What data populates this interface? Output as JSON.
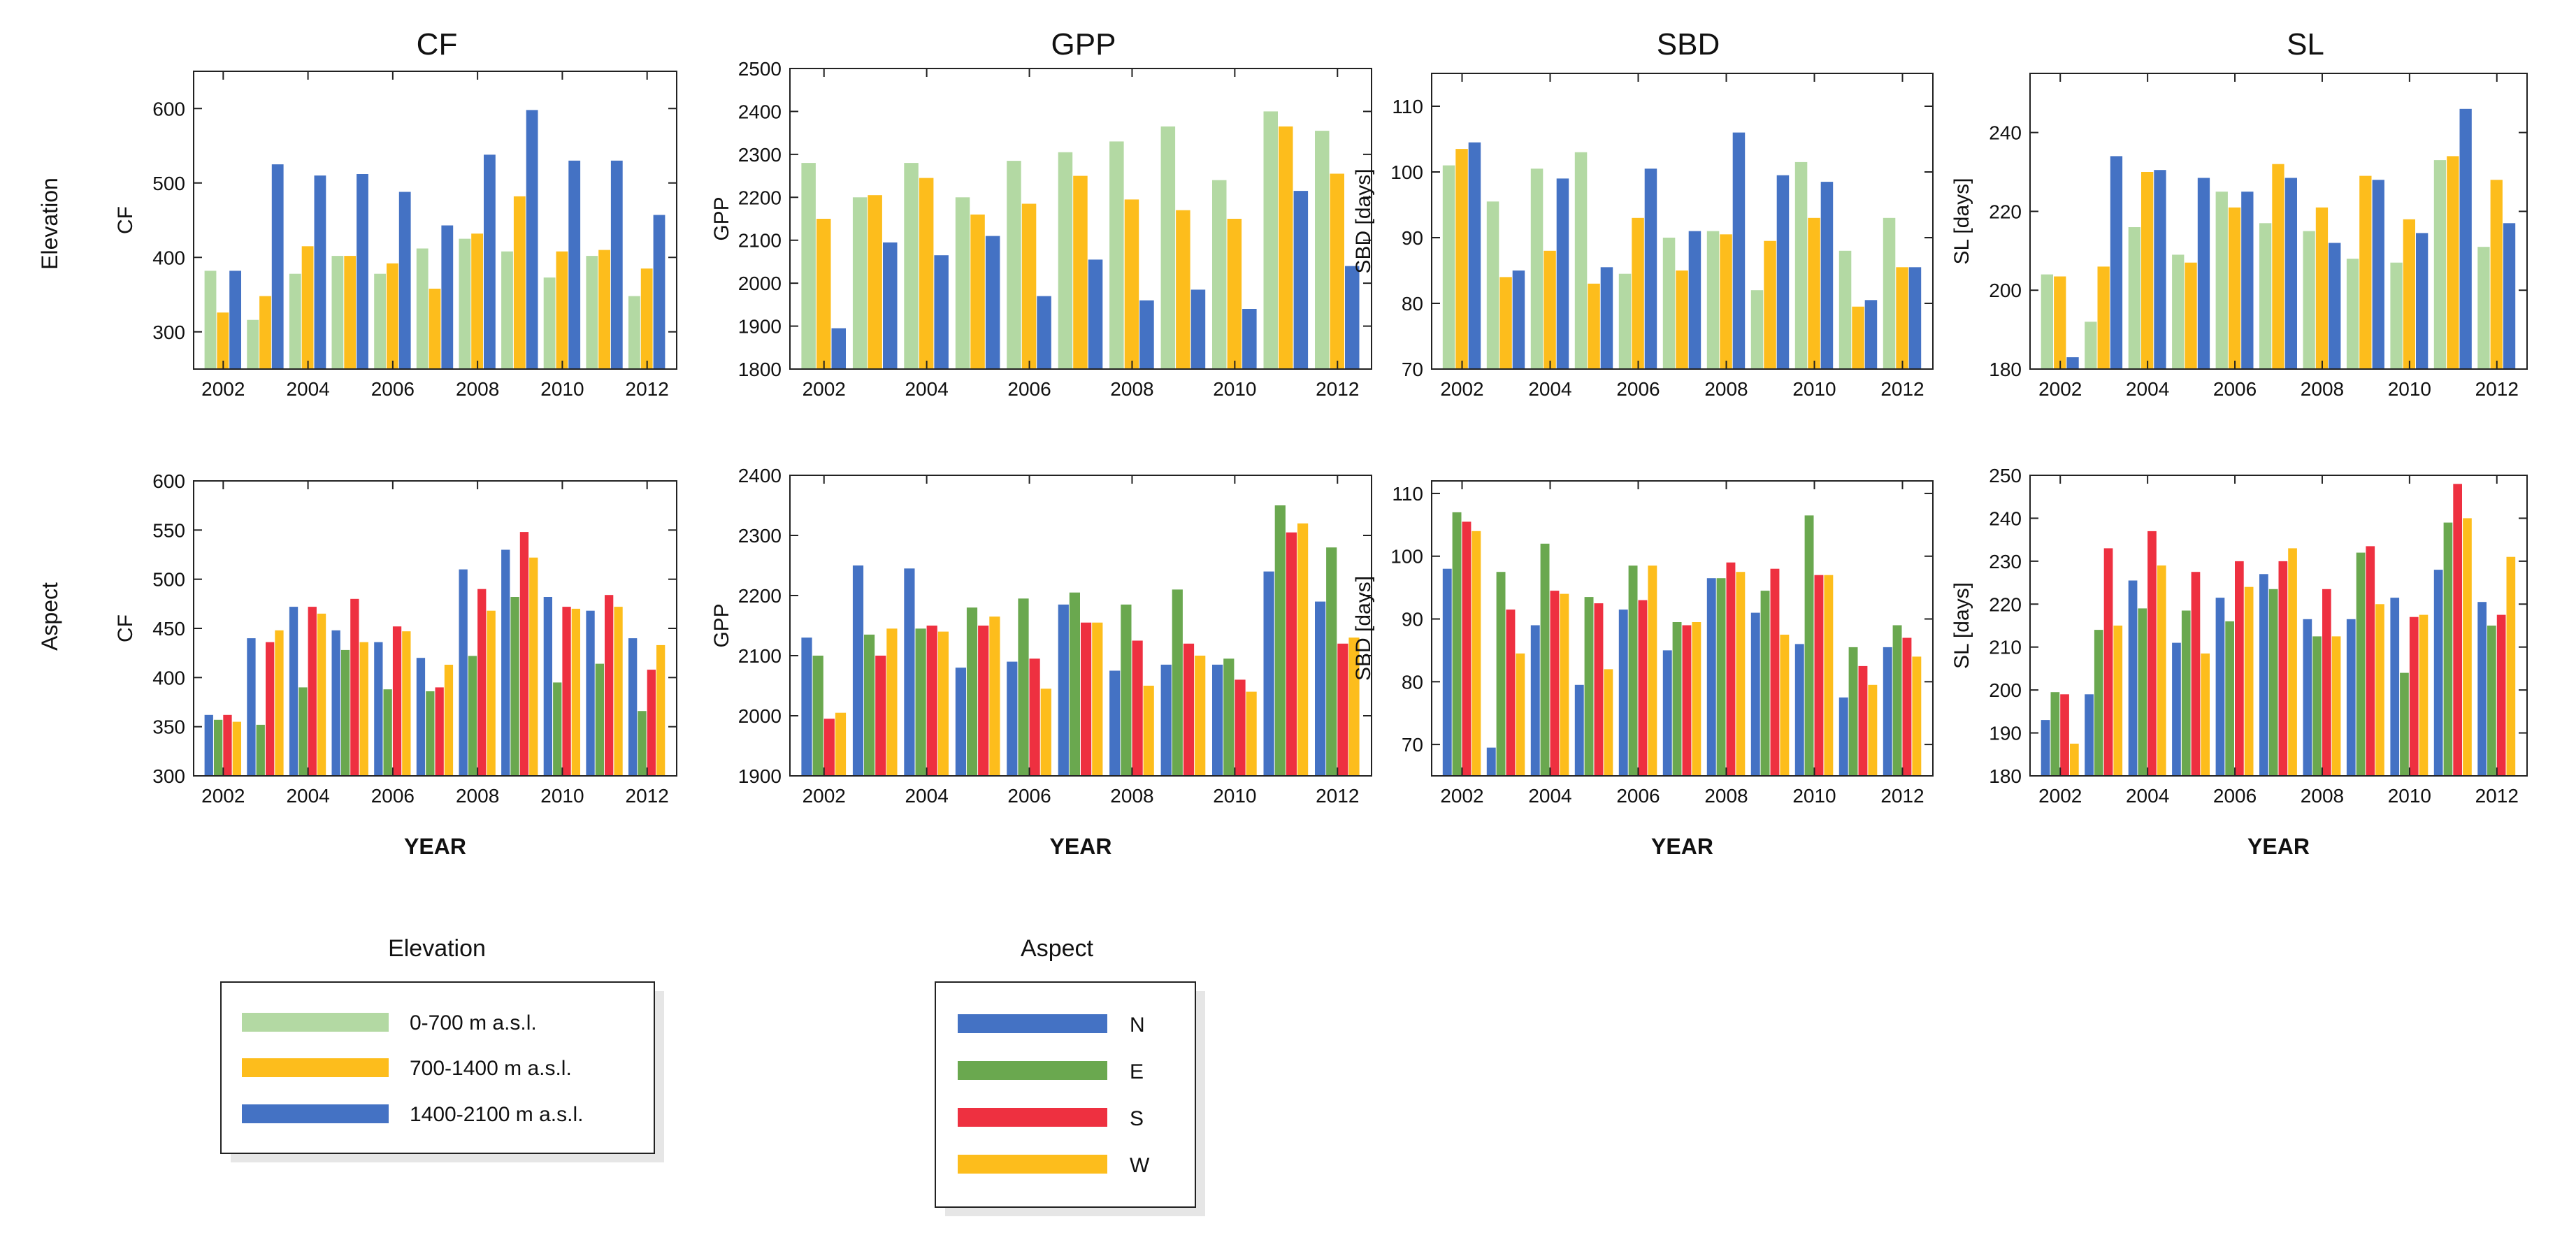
{
  "column_titles": [
    "CF",
    "GPP",
    "SBD",
    "SL"
  ],
  "row_labels": [
    "Elevation",
    "Aspect"
  ],
  "legends": [
    {
      "title": "Elevation",
      "items": [
        {
          "label": "0-700 m a.s.l.",
          "color": "#b3d9a3"
        },
        {
          "label": "700-1400 m a.s.l.",
          "color": "#fdbd1c"
        },
        {
          "label": "1400-2100 m a.s.l.",
          "color": "#4472c4"
        }
      ]
    },
    {
      "title": "Aspect",
      "items": [
        {
          "label": "N",
          "color": "#4472c4"
        },
        {
          "label": "E",
          "color": "#6aa84f"
        },
        {
          "label": "S",
          "color": "#ee3040"
        },
        {
          "label": "W",
          "color": "#fdbd1c"
        }
      ]
    }
  ],
  "chart_data": [
    {
      "type": "bar",
      "row": 0,
      "col": 0,
      "title": "CF",
      "ylabel": "CF",
      "xlabel": "",
      "categories": [
        2002,
        2003,
        2004,
        2005,
        2006,
        2007,
        2008,
        2009,
        2010,
        2011,
        2012
      ],
      "x_ticks": [
        "2002",
        "2004",
        "2006",
        "2008",
        "2010",
        "2012"
      ],
      "ylim": [
        250,
        650
      ],
      "y_ticks": [
        300,
        400,
        500,
        600
      ],
      "series": [
        {
          "name": "0-700 m a.s.l.",
          "color": "#b3d9a3",
          "values": [
            382,
            316,
            378,
            402,
            378,
            412,
            425,
            408,
            373,
            402,
            348
          ]
        },
        {
          "name": "700-1400 m a.s.l.",
          "color": "#fdbd1c",
          "values": [
            326,
            348,
            415,
            402,
            392,
            358,
            432,
            482,
            408,
            410,
            385
          ]
        },
        {
          "name": "1400-2100 m a.s.l.",
          "color": "#4472c4",
          "values": [
            382,
            525,
            510,
            512,
            488,
            443,
            538,
            598,
            530,
            530,
            457
          ]
        }
      ]
    },
    {
      "type": "bar",
      "row": 0,
      "col": 1,
      "title": "GPP",
      "ylabel": "GPP",
      "xlabel": "",
      "categories": [
        2002,
        2003,
        2004,
        2005,
        2006,
        2007,
        2008,
        2009,
        2010,
        2011,
        2012
      ],
      "x_ticks": [
        "2002",
        "2004",
        "2006",
        "2008",
        "2010",
        "2012"
      ],
      "ylim": [
        1800,
        2500
      ],
      "y_ticks": [
        1800,
        1900,
        2000,
        2100,
        2200,
        2300,
        2400,
        2500
      ],
      "series": [
        {
          "name": "0-700 m a.s.l.",
          "color": "#b3d9a3",
          "values": [
            2280,
            2200,
            2280,
            2200,
            2285,
            2305,
            2330,
            2365,
            2240,
            2400,
            2355
          ]
        },
        {
          "name": "700-1400 m a.s.l.",
          "color": "#fdbd1c",
          "values": [
            2150,
            2205,
            2245,
            2160,
            2185,
            2250,
            2195,
            2170,
            2150,
            2365,
            2255
          ]
        },
        {
          "name": "1400-2100 m a.s.l.",
          "color": "#4472c4",
          "values": [
            1895,
            2095,
            2065,
            2110,
            1970,
            2055,
            1960,
            1985,
            1940,
            2215,
            2040
          ]
        }
      ]
    },
    {
      "type": "bar",
      "row": 0,
      "col": 2,
      "title": "SBD",
      "ylabel": "SBD [days]",
      "xlabel": "",
      "categories": [
        2002,
        2003,
        2004,
        2005,
        2006,
        2007,
        2008,
        2009,
        2010,
        2011,
        2012
      ],
      "x_ticks": [
        "2002",
        "2004",
        "2006",
        "2008",
        "2010",
        "2012"
      ],
      "ylim": [
        70,
        115
      ],
      "y_ticks": [
        70,
        80,
        90,
        100,
        110
      ],
      "series": [
        {
          "name": "0-700 m a.s.l.",
          "color": "#b3d9a3",
          "values": [
            101,
            95.5,
            100.5,
            103,
            84.5,
            90,
            91,
            82,
            101.5,
            88,
            93
          ]
        },
        {
          "name": "700-1400 m a.s.l.",
          "color": "#fdbd1c",
          "values": [
            103.5,
            84,
            88,
            83,
            93,
            85,
            90.5,
            89.5,
            93,
            79.5,
            85.5
          ]
        },
        {
          "name": "1400-2100 m a.s.l.",
          "color": "#4472c4",
          "values": [
            104.5,
            85,
            99,
            85.5,
            100.5,
            91,
            106,
            99.5,
            98.5,
            80.5,
            85.5
          ]
        }
      ]
    },
    {
      "type": "bar",
      "row": 0,
      "col": 3,
      "title": "SL",
      "ylabel": "SL [days]",
      "xlabel": "",
      "categories": [
        2002,
        2003,
        2004,
        2005,
        2006,
        2007,
        2008,
        2009,
        2010,
        2011,
        2012
      ],
      "x_ticks": [
        "2002",
        "2004",
        "2006",
        "2008",
        "2010",
        "2012"
      ],
      "ylim": [
        180,
        255
      ],
      "y_ticks": [
        180,
        200,
        220,
        240
      ],
      "series": [
        {
          "name": "0-700 m a.s.l.",
          "color": "#b3d9a3",
          "values": [
            204,
            192,
            216,
            209,
            225,
            217,
            215,
            208,
            207,
            233,
            211
          ]
        },
        {
          "name": "700-1400 m a.s.l.",
          "color": "#fdbd1c",
          "values": [
            203.5,
            206,
            230,
            207,
            221,
            232,
            221,
            229,
            218,
            234,
            228
          ]
        },
        {
          "name": "1400-2100 m a.s.l.",
          "color": "#4472c4",
          "values": [
            183,
            234,
            230.5,
            228.5,
            225,
            228.5,
            212,
            228,
            214.5,
            246,
            217
          ]
        }
      ]
    },
    {
      "type": "bar",
      "row": 1,
      "col": 0,
      "title": "",
      "ylabel": "CF",
      "xlabel": "YEAR",
      "categories": [
        2002,
        2003,
        2004,
        2005,
        2006,
        2007,
        2008,
        2009,
        2010,
        2011,
        2012
      ],
      "x_ticks": [
        "2002",
        "2004",
        "2006",
        "2008",
        "2010",
        "2012"
      ],
      "ylim": [
        300,
        600
      ],
      "y_ticks": [
        300,
        350,
        400,
        450,
        500,
        550,
        600
      ],
      "series": [
        {
          "name": "N",
          "color": "#4472c4",
          "values": [
            362,
            440,
            472,
            448,
            436,
            420,
            510,
            530,
            482,
            468,
            440
          ]
        },
        {
          "name": "E",
          "color": "#6aa84f",
          "values": [
            357,
            352,
            390,
            428,
            388,
            386,
            422,
            482,
            395,
            414,
            366
          ]
        },
        {
          "name": "S",
          "color": "#ee3040",
          "values": [
            362,
            436,
            472,
            480,
            452,
            390,
            490,
            548,
            472,
            484,
            408
          ]
        },
        {
          "name": "W",
          "color": "#fdbd1c",
          "values": [
            355,
            448,
            465,
            436,
            447,
            413,
            468,
            522,
            470,
            472,
            433
          ]
        }
      ]
    },
    {
      "type": "bar",
      "row": 1,
      "col": 1,
      "title": "",
      "ylabel": "GPP",
      "xlabel": "YEAR",
      "categories": [
        2002,
        2003,
        2004,
        2005,
        2006,
        2007,
        2008,
        2009,
        2010,
        2011,
        2012
      ],
      "x_ticks": [
        "2002",
        "2004",
        "2006",
        "2008",
        "2010",
        "2012"
      ],
      "ylim": [
        1900,
        2400
      ],
      "y_ticks": [
        1900,
        2000,
        2100,
        2200,
        2300,
        2400
      ],
      "series": [
        {
          "name": "N",
          "color": "#4472c4",
          "values": [
            2130,
            2250,
            2245,
            2080,
            2090,
            2185,
            2075,
            2085,
            2085,
            2240,
            2190
          ]
        },
        {
          "name": "E",
          "color": "#6aa84f",
          "values": [
            2100,
            2135,
            2145,
            2180,
            2195,
            2205,
            2185,
            2210,
            2095,
            2350,
            2280
          ]
        },
        {
          "name": "S",
          "color": "#ee3040",
          "values": [
            1995,
            2100,
            2150,
            2150,
            2095,
            2155,
            2125,
            2120,
            2060,
            2305,
            2120
          ]
        },
        {
          "name": "W",
          "color": "#fdbd1c",
          "values": [
            2005,
            2145,
            2140,
            2165,
            2045,
            2155,
            2050,
            2100,
            2040,
            2320,
            2130
          ]
        }
      ]
    },
    {
      "type": "bar",
      "row": 1,
      "col": 2,
      "title": "",
      "ylabel": "SBD [days]",
      "xlabel": "YEAR",
      "categories": [
        2002,
        2003,
        2004,
        2005,
        2006,
        2007,
        2008,
        2009,
        2010,
        2011,
        2012
      ],
      "x_ticks": [
        "2002",
        "2004",
        "2006",
        "2008",
        "2010",
        "2012"
      ],
      "ylim": [
        65,
        112
      ],
      "y_ticks": [
        70,
        80,
        90,
        100,
        110
      ],
      "series": [
        {
          "name": "N",
          "color": "#4472c4",
          "values": [
            98,
            69.5,
            89,
            79.5,
            91.5,
            85,
            96.5,
            91,
            86,
            77.5,
            85.5
          ]
        },
        {
          "name": "E",
          "color": "#6aa84f",
          "values": [
            107,
            97.5,
            102,
            93.5,
            98.5,
            89.5,
            96.5,
            94.5,
            106.5,
            85.5,
            89
          ]
        },
        {
          "name": "S",
          "color": "#ee3040",
          "values": [
            105.5,
            91.5,
            94.5,
            92.5,
            93,
            89,
            99,
            98,
            97,
            82.5,
            87
          ]
        },
        {
          "name": "W",
          "color": "#fdbd1c",
          "values": [
            104,
            84.5,
            94,
            82,
            98.5,
            89.5,
            97.5,
            87.5,
            97,
            79.5,
            84
          ]
        }
      ]
    },
    {
      "type": "bar",
      "row": 1,
      "col": 3,
      "title": "",
      "ylabel": "SL [days]",
      "xlabel": "YEAR",
      "categories": [
        2002,
        2003,
        2004,
        2005,
        2006,
        2007,
        2008,
        2009,
        2010,
        2011,
        2012
      ],
      "x_ticks": [
        "2002",
        "2004",
        "2006",
        "2008",
        "2010",
        "2012"
      ],
      "ylim": [
        180,
        250
      ],
      "y_ticks": [
        180,
        190,
        200,
        210,
        220,
        230,
        240,
        250
      ],
      "series": [
        {
          "name": "N",
          "color": "#4472c4",
          "values": [
            193,
            199,
            225.5,
            211,
            221.5,
            227,
            216.5,
            216.5,
            221.5,
            228,
            220.5
          ]
        },
        {
          "name": "E",
          "color": "#6aa84f",
          "values": [
            199.5,
            214,
            219,
            218.5,
            216,
            223.5,
            212.5,
            232,
            204,
            239,
            215
          ]
        },
        {
          "name": "S",
          "color": "#ee3040",
          "values": [
            199,
            233,
            237,
            227.5,
            230,
            230,
            223.5,
            233.5,
            217,
            248,
            217.5
          ]
        },
        {
          "name": "W",
          "color": "#fdbd1c",
          "values": [
            187.5,
            215,
            229,
            208.5,
            224,
            233,
            212.5,
            220,
            217.5,
            240,
            231
          ]
        }
      ]
    }
  ]
}
